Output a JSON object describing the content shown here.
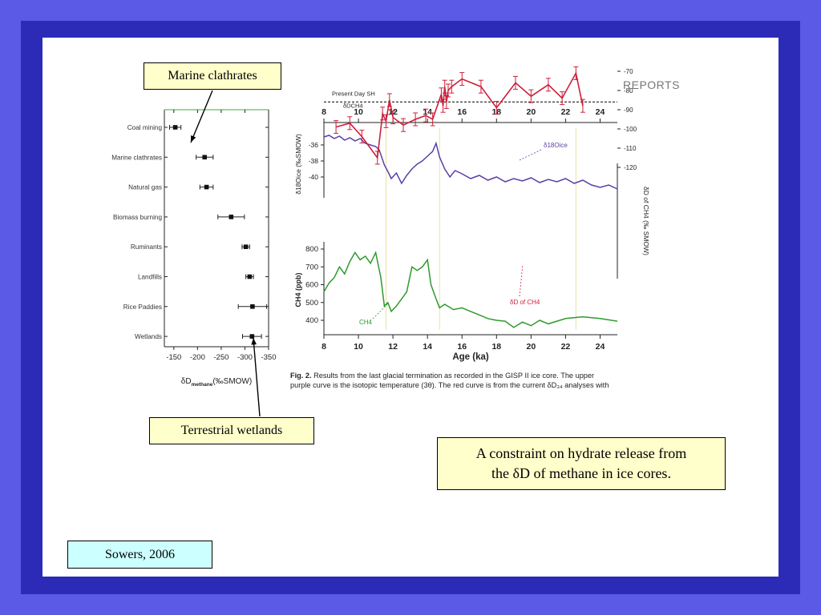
{
  "callouts": {
    "marine": "Marine clathrates",
    "wetlands": "Terrestrial wetlands"
  },
  "caption": {
    "line1": "A constraint on hydrate release from",
    "line2": "the δD of methane in ice cores."
  },
  "citation": "Sowers, 2006",
  "journal_header": "REPORTS",
  "figure_caption": {
    "label": "Fig. 2.",
    "line1": "Results from the last glacial termination as recorded in the GISP II ice core. The upper",
    "line2": "purple curve is the isotopic temperature (3θ). The red curve is from the current δD₃₄ analyses with"
  },
  "colors": {
    "background": "#5a5ae6",
    "frame": "#2b2bb8",
    "callout_fill": "#ffffcc",
    "citation_fill": "#ccffff",
    "d18o_series": "#5b3fa6",
    "dd_series": "#cc1f3a",
    "ch4_series": "#2e9a2e",
    "source_baseline": "#66bb66"
  },
  "chart_data": [
    {
      "type": "scatter",
      "title": "",
      "xlabel": "δD methane (‰SMOW)",
      "xlabel_main": "δD",
      "xlabel_sub": "methane",
      "xlabel_tail": "(‰SMOW)",
      "ylabel": "",
      "xlim": [
        -130,
        -350
      ],
      "xticks": [
        -150,
        -200,
        -250,
        -300,
        -350
      ],
      "categories": [
        "Coal mining",
        "Marine clathrates",
        "Natural gas",
        "Biomass burning",
        "Ruminants",
        "Landfills",
        "Rice Paddies",
        "Wetlands"
      ],
      "values": [
        -153,
        -215,
        -219,
        -271,
        -302,
        -310,
        -316,
        -315
      ],
      "error": [
        12,
        18,
        14,
        28,
        8,
        8,
        30,
        20
      ]
    },
    {
      "type": "line",
      "xlabel": "Age (ka)",
      "xlim": [
        8,
        25
      ],
      "xticks": [
        8,
        10,
        12,
        14,
        16,
        18,
        20,
        22,
        24
      ],
      "series_labels": {
        "d18o": "δ18Oice",
        "dd": "δD of CH4",
        "ch4": "CH4"
      },
      "axes": {
        "d18o_label": "δ18Oice (‰SMOW)",
        "d18o_ticks": [
          -36,
          -38,
          -40
        ],
        "dd_label": "δD of CH4 (‰ SMOW)",
        "dd_ticks": [
          -120,
          -110,
          -100,
          -90,
          -80,
          -70
        ],
        "ch4_label": "CH4 (ppb)",
        "ch4_ticks": [
          800,
          700,
          600,
          500,
          400
        ]
      },
      "present_day_label": "Present Day SH",
      "present_day_sub": "δDCH4",
      "present_day_value": -86,
      "series": [
        {
          "key": "d18o",
          "name": "δ18Oice",
          "x": [
            8.0,
            8.3,
            8.6,
            8.9,
            9.2,
            9.5,
            9.8,
            10.1,
            10.4,
            10.7,
            11.0,
            11.2,
            11.5,
            11.7,
            11.9,
            12.2,
            12.5,
            12.8,
            13.1,
            13.4,
            13.7,
            14.0,
            14.3,
            14.5,
            14.7,
            15.0,
            15.3,
            15.6,
            16.0,
            16.5,
            17.0,
            17.5,
            18.0,
            18.5,
            19.0,
            19.5,
            20.0,
            20.5,
            21.0,
            21.5,
            22.0,
            22.5,
            23.0,
            23.5,
            24.0,
            24.5,
            25.0
          ],
          "y": [
            -35.0,
            -34.8,
            -35.2,
            -34.9,
            -35.4,
            -35.1,
            -35.5,
            -35.2,
            -35.8,
            -36.0,
            -36.2,
            -36.6,
            -38.5,
            -39.3,
            -40.2,
            -39.5,
            -40.8,
            -39.8,
            -39.0,
            -38.4,
            -38.0,
            -37.4,
            -36.8,
            -35.8,
            -37.5,
            -39.0,
            -40.0,
            -39.2,
            -39.6,
            -40.2,
            -39.8,
            -40.4,
            -40.0,
            -40.6,
            -40.2,
            -40.5,
            -40.1,
            -40.7,
            -40.3,
            -40.6,
            -40.2,
            -40.8,
            -40.4,
            -41.0,
            -41.3,
            -41.0,
            -41.5
          ]
        },
        {
          "key": "dd",
          "name": "δD of CH4",
          "x": [
            8.7,
            9.5,
            10.2,
            11.1,
            11.4,
            11.6,
            11.8,
            12.0,
            12.6,
            13.3,
            13.9,
            14.3,
            14.8,
            14.9,
            15.0,
            15.1,
            15.2,
            15.4,
            16.0,
            17.1,
            18.0,
            19.1,
            20.0,
            21.0,
            21.8,
            22.6,
            23.0
          ],
          "y": [
            -99,
            -97,
            -104,
            -115,
            -92,
            -96,
            -85,
            -94,
            -98,
            -95,
            -93,
            -95,
            -82,
            -88,
            -78,
            -86,
            -80,
            -78,
            -74,
            -78,
            -89,
            -76,
            -83,
            -77,
            -84,
            -71,
            -88
          ]
        },
        {
          "key": "ch4",
          "name": "CH4",
          "x": [
            8.0,
            8.3,
            8.6,
            8.9,
            9.2,
            9.5,
            9.8,
            10.1,
            10.4,
            10.7,
            11.0,
            11.3,
            11.5,
            11.7,
            11.9,
            12.2,
            12.5,
            12.8,
            13.1,
            13.4,
            13.7,
            14.0,
            14.2,
            14.5,
            14.7,
            15.0,
            15.5,
            16.0,
            16.5,
            17.0,
            17.5,
            18.0,
            18.5,
            19.0,
            19.5,
            20.0,
            20.5,
            21.0,
            22.0,
            23.0,
            24.0,
            25.0
          ],
          "y": [
            560,
            610,
            640,
            700,
            660,
            730,
            780,
            740,
            760,
            720,
            780,
            640,
            480,
            500,
            450,
            480,
            520,
            560,
            700,
            680,
            700,
            740,
            600,
            520,
            470,
            490,
            460,
            470,
            450,
            430,
            410,
            400,
            395,
            360,
            390,
            370,
            400,
            380,
            410,
            420,
            410,
            395
          ]
        }
      ]
    }
  ]
}
